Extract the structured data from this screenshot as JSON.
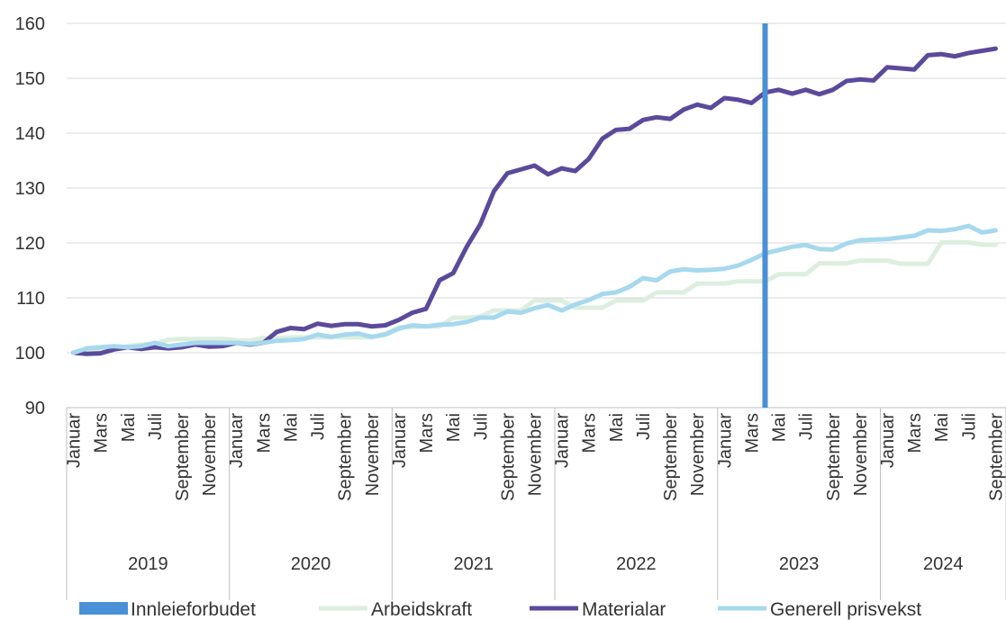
{
  "chart_data": {
    "type": "line",
    "title": "",
    "xlabel": "",
    "ylabel": "",
    "ylim": [
      90,
      160
    ],
    "yticks": [
      90,
      100,
      110,
      120,
      130,
      140,
      150,
      160
    ],
    "grid": true,
    "legend_position": "bottom",
    "years": [
      "2019",
      "2020",
      "2021",
      "2022",
      "2023",
      "2024"
    ],
    "month_labels": [
      "Januar",
      "Mars",
      "Mai",
      "Juli",
      "September",
      "November"
    ],
    "month_labels_2024": [
      "Januar",
      "Mars",
      "Mai",
      "Juli",
      "September"
    ],
    "months_per_year": 12,
    "n_months": 69,
    "marker": {
      "name": "Innleieforbudet",
      "year": "2023",
      "month": "April",
      "color": "#4a90d6"
    },
    "series": [
      {
        "name": "Arbeidskraft",
        "color": "#dcefdf",
        "values": [
          100,
          100.2,
          100.4,
          100.8,
          101.2,
          101.5,
          101.6,
          102.4,
          102.5,
          102.5,
          102.5,
          102.5,
          102.3,
          102.2,
          102.7,
          102.7,
          102.8,
          102.8,
          102.8,
          102.8,
          102.8,
          102.8,
          102.8,
          103.5,
          104.7,
          104.7,
          104.8,
          104.8,
          106.4,
          106.4,
          106.6,
          107.7,
          107.7,
          107.7,
          109.5,
          109.5,
          109.5,
          108.2,
          108.2,
          108.2,
          109.5,
          109.5,
          109.5,
          111.0,
          111.0,
          111.0,
          112.6,
          112.6,
          112.6,
          113.0,
          113.0,
          113.0,
          114.3,
          114.3,
          114.3,
          116.3,
          116.3,
          116.3,
          116.8,
          116.8,
          116.8,
          116.2,
          116.2,
          116.2,
          120.1,
          120.1,
          120.1,
          119.7,
          119.7
        ]
      },
      {
        "name": "Materialar",
        "color": "#5b4a9b",
        "values": [
          100,
          99.8,
          99.9,
          100.6,
          101.0,
          100.7,
          101.0,
          100.8,
          101.0,
          101.5,
          101.1,
          101.2,
          101.8,
          101.5,
          101.8,
          103.8,
          104.5,
          104.3,
          105.3,
          104.9,
          105.2,
          105.2,
          104.8,
          105.0,
          106.0,
          107.3,
          108.0,
          113.2,
          114.5,
          119.3,
          123.4,
          129.4,
          132.7,
          133.4,
          134.1,
          132.5,
          133.6,
          133.1,
          135.3,
          139.0,
          140.6,
          140.8,
          142.4,
          142.9,
          142.6,
          144.3,
          145.2,
          144.6,
          146.4,
          146.1,
          145.5,
          147.4,
          147.9,
          147.2,
          147.9,
          147.1,
          147.9,
          149.5,
          149.8,
          149.6,
          152.0,
          151.8,
          151.6,
          154.2,
          154.4,
          154.0,
          154.6,
          155.0,
          155.4
        ]
      },
      {
        "name": "Generell prisvekst",
        "color": "#a6d8ee",
        "values": [
          100,
          100.8,
          101.0,
          101.2,
          101.0,
          101.2,
          101.8,
          101.2,
          101.5,
          101.8,
          101.8,
          101.8,
          101.8,
          101.6,
          101.8,
          102.2,
          102.3,
          102.5,
          103.3,
          102.9,
          103.3,
          103.5,
          102.9,
          103.3,
          104.4,
          105.0,
          104.8,
          105.1,
          105.2,
          105.6,
          106.4,
          106.4,
          107.5,
          107.3,
          108.1,
          108.7,
          107.7,
          108.8,
          109.6,
          110.7,
          111.0,
          112.0,
          113.6,
          113.2,
          114.8,
          115.2,
          115.0,
          115.1,
          115.3,
          115.9,
          116.9,
          118.1,
          118.7,
          119.3,
          119.6,
          118.9,
          118.8,
          119.9,
          120.5,
          120.6,
          120.7,
          121.0,
          121.3,
          122.3,
          122.2,
          122.5,
          123.1,
          121.9,
          122.3
        ]
      }
    ],
    "legend_order": [
      "Innleieforbudet",
      "Arbeidskraft",
      "Materialar",
      "Generell prisvekst"
    ]
  }
}
